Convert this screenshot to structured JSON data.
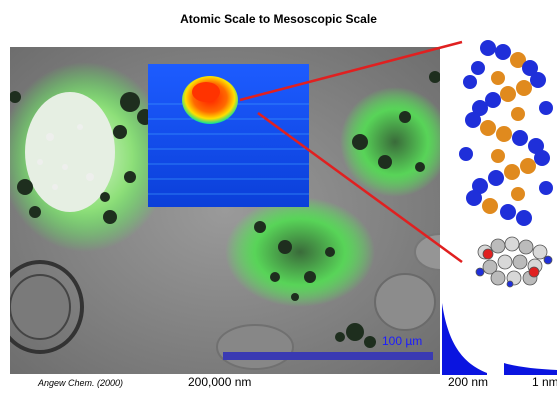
{
  "title": "Atomic Scale to Mesoscopic Scale",
  "scale_bar_label": "100 µm",
  "citation": "Angew Chem. (2000)",
  "scales": {
    "left": "200,000 nm",
    "middle": "200 nm",
    "right": "1 nm"
  },
  "colors": {
    "microscopy_gray": "#8b8b8b",
    "fluorescence_green": "#4cff4c",
    "scale_bar": "#3a3ab3",
    "pointer_lines": "#e02020",
    "dna_blue": "#1f2fd9",
    "dna_orange": "#e08a1e"
  }
}
